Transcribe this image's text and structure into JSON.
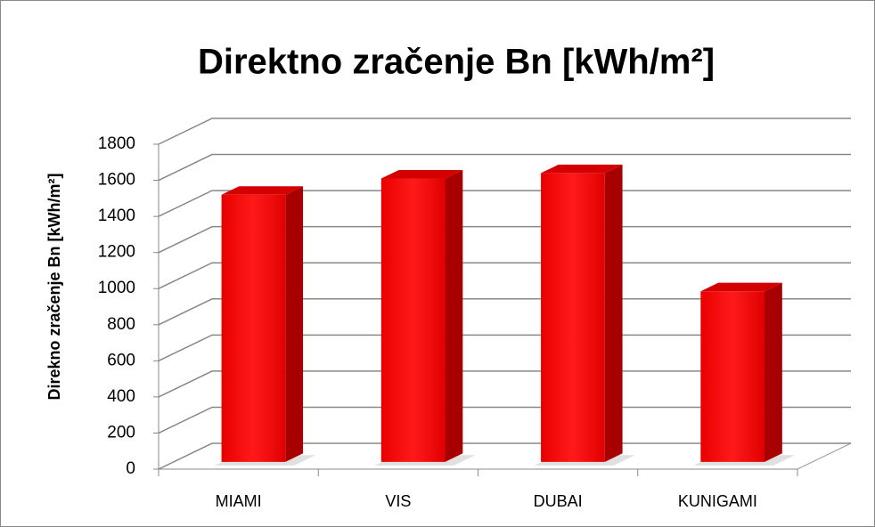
{
  "chart_data": {
    "type": "bar3d",
    "title": "Direktno zračenje Bn [kWh/m²]",
    "y_label": "Direkno zračenje Bn [kWh/m²]",
    "categories": [
      "MIAMI",
      "VIS",
      "DUBAI",
      "KUNIGAMI"
    ],
    "values": [
      1480,
      1570,
      1600,
      945
    ],
    "color": "#ff0000",
    "ylim": [
      0,
      1800
    ],
    "yticks": [
      0,
      200,
      400,
      600,
      800,
      1000,
      1200,
      1400,
      1600,
      1800
    ],
    "grid": true
  }
}
